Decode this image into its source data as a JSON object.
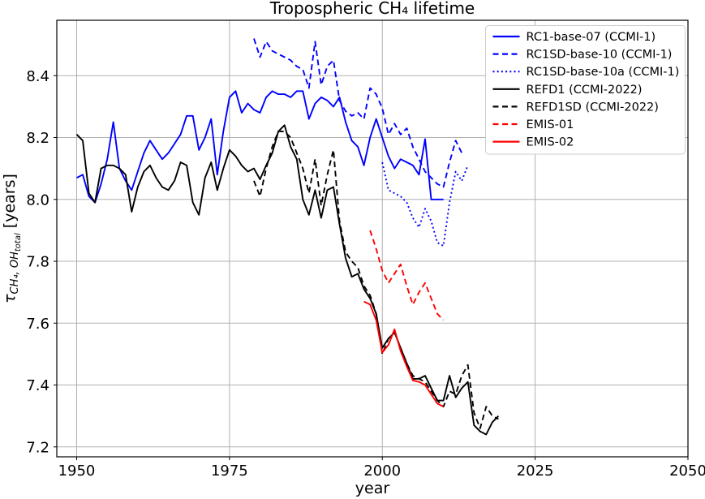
{
  "chart_data": {
    "type": "line",
    "title": "Tropospheric CH₄ lifetime",
    "xlabel": "year",
    "ylabel": "τ_CH₄, OH_total [years]",
    "ylabel_parts": {
      "symbol": "τ",
      "subscript": "CH₄, OH",
      "subsubscript": "total",
      "suffix": " [years]"
    },
    "xlim": [
      1946.75,
      2050
    ],
    "ylim": [
      7.168,
      8.579
    ],
    "xticks": [
      "1950",
      "1975",
      "2000",
      "2025",
      "2050"
    ],
    "yticks": [
      "7.2",
      "7.4",
      "7.6",
      "7.8",
      "8.0",
      "8.2",
      "8.4"
    ],
    "grid": true,
    "grid_color": "#b0b0b0",
    "background_color": "#ffffff",
    "legend": {
      "position": "upper right",
      "border_color": "#cccccc",
      "entries": [
        "RC1-base-07 (CCMI-1)",
        "RC1SD-base-10 (CCMI-1)",
        "RC1SD-base-10a (CCMI-1)",
        "REFD1 (CCMI-2022)",
        "REFD1SD (CCMI-2022)",
        "EMIS-01",
        "EMIS-02"
      ]
    },
    "series": [
      {
        "name": "RC1-base-07 (CCMI-1)",
        "color": "#0000ff",
        "line_style": "solid",
        "start_year": 1950,
        "values": [
          8.07,
          8.08,
          8.01,
          7.99,
          8.05,
          8.13,
          8.25,
          8.1,
          8.06,
          8.03,
          8.09,
          8.15,
          8.19,
          8.16,
          8.13,
          8.15,
          8.18,
          8.21,
          8.27,
          8.27,
          8.16,
          8.2,
          8.26,
          8.08,
          8.22,
          8.33,
          8.35,
          8.28,
          8.31,
          8.29,
          8.28,
          8.33,
          8.35,
          8.34,
          8.34,
          8.33,
          8.35,
          8.35,
          8.26,
          8.31,
          8.33,
          8.32,
          8.3,
          8.33,
          8.25,
          8.19,
          8.17,
          8.11,
          8.2,
          8.26,
          8.2,
          8.14,
          8.1,
          8.13,
          8.12,
          8.11,
          8.08,
          8.195,
          8.0,
          8.0,
          8.0
        ]
      },
      {
        "name": "RC1SD-base-10 (CCMI-1)",
        "color": "#0000ff",
        "line_style": "dashed",
        "start_year": 1979,
        "values": [
          8.52,
          8.46,
          8.51,
          8.48,
          8.47,
          8.46,
          8.45,
          8.43,
          8.42,
          8.36,
          8.51,
          8.37,
          8.43,
          8.45,
          8.32,
          8.285,
          8.27,
          8.28,
          8.26,
          8.36,
          8.34,
          8.295,
          8.21,
          8.245,
          8.21,
          8.23,
          8.17,
          8.13,
          8.09,
          8.07,
          8.05,
          8.04,
          8.12,
          8.19,
          8.15
        ]
      },
      {
        "name": "RC1SD-base-10a (CCMI-1)",
        "color": "#0000ff",
        "line_style": "dotted",
        "start_year": 2000,
        "values": [
          8.12,
          8.03,
          8.02,
          8.01,
          7.99,
          7.94,
          7.91,
          7.97,
          7.93,
          7.86,
          7.85,
          7.99,
          8.09,
          8.06,
          8.11
        ]
      },
      {
        "name": "REFD1 (CCMI-2022)",
        "color": "#000000",
        "line_style": "solid",
        "start_year": 1950,
        "values": [
          8.21,
          8.19,
          8.02,
          7.99,
          8.1,
          8.11,
          8.11,
          8.1,
          8.08,
          7.96,
          8.04,
          8.09,
          8.11,
          8.07,
          8.04,
          8.03,
          8.06,
          8.12,
          8.11,
          7.99,
          7.95,
          8.07,
          8.12,
          8.03,
          8.1,
          8.16,
          8.14,
          8.11,
          8.09,
          8.1,
          8.065,
          8.11,
          8.15,
          8.22,
          8.24,
          8.17,
          8.13,
          8.0,
          7.95,
          8.03,
          7.94,
          8.03,
          8.04,
          7.92,
          7.81,
          7.75,
          7.76,
          7.71,
          7.68,
          7.63,
          7.52,
          7.55,
          7.57,
          7.52,
          7.47,
          7.42,
          7.42,
          7.43,
          7.39,
          7.35,
          7.35,
          7.43,
          7.36,
          7.39,
          7.41,
          7.27,
          7.25,
          7.24,
          7.28,
          7.3
        ]
      },
      {
        "name": "REFD1SD (CCMI-2022)",
        "color": "#000000",
        "line_style": "dashed",
        "start_year": 1979,
        "values": [
          8.06,
          8.01,
          8.1,
          8.17,
          8.22,
          8.22,
          8.2,
          8.15,
          8.1,
          8.02,
          8.13,
          7.98,
          8.08,
          8.16,
          7.93,
          7.83,
          7.8,
          7.78,
          7.72,
          7.69,
          7.63,
          7.5,
          7.55,
          7.57,
          7.52,
          7.47,
          7.43,
          7.42,
          7.41,
          7.38,
          7.35,
          7.33,
          7.38,
          7.37,
          7.43,
          7.465,
          7.31,
          7.26,
          7.33,
          7.3,
          7.29
        ]
      },
      {
        "name": "EMIS-01",
        "color": "#ff0000",
        "line_style": "dashed",
        "start_year": 1998,
        "values": [
          7.9,
          7.84,
          7.77,
          7.73,
          7.76,
          7.79,
          7.72,
          7.66,
          7.7,
          7.73,
          7.68,
          7.63,
          7.61
        ]
      },
      {
        "name": "EMIS-02",
        "color": "#ff0000",
        "line_style": "solid",
        "start_year": 1997,
        "values": [
          7.67,
          7.66,
          7.61,
          7.505,
          7.53,
          7.58,
          7.51,
          7.46,
          7.415,
          7.41,
          7.4,
          7.37,
          7.34,
          7.33
        ]
      }
    ]
  }
}
